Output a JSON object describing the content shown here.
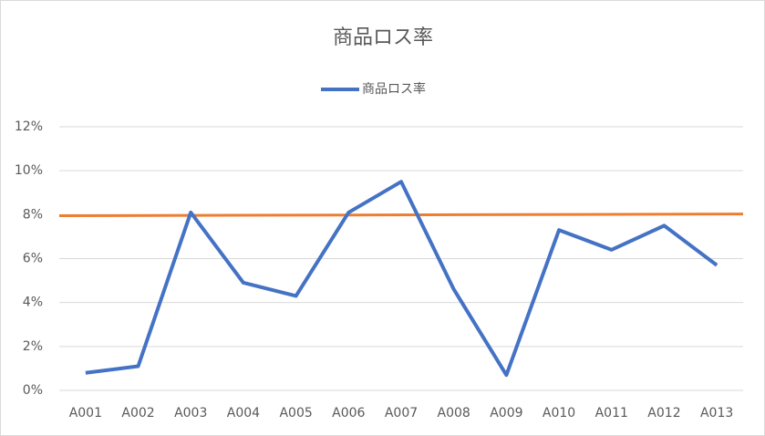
{
  "chart_data": {
    "type": "line",
    "title": "商品ロス率",
    "categories": [
      "A001",
      "A002",
      "A003",
      "A004",
      "A005",
      "A006",
      "A007",
      "A008",
      "A009",
      "A010",
      "A011",
      "A012",
      "A013"
    ],
    "series": [
      {
        "name": "商品ロス率",
        "color": "#4472c4",
        "values": [
          0.8,
          1.1,
          8.1,
          4.9,
          4.3,
          8.1,
          9.5,
          4.6,
          0.7,
          7.3,
          6.4,
          7.5,
          5.7
        ]
      }
    ],
    "reference_line": {
      "color": "#ed7d31",
      "values": [
        7.95,
        8.03
      ]
    },
    "ylim": [
      0,
      12
    ],
    "yticks": [
      {
        "value": 0,
        "label": "0%"
      },
      {
        "value": 2,
        "label": "2%"
      },
      {
        "value": 4,
        "label": "4%"
      },
      {
        "value": 6,
        "label": "6%"
      },
      {
        "value": 8,
        "label": "8%"
      },
      {
        "value": 10,
        "label": "10%"
      },
      {
        "value": 12,
        "label": "12%"
      }
    ],
    "grid": true,
    "legend": "top"
  }
}
